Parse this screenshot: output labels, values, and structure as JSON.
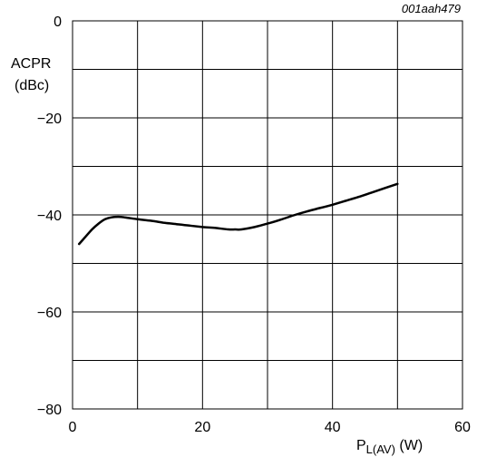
{
  "chart_data": {
    "type": "line",
    "figure_code": "001aah479",
    "ylabel_line1": "ACPR",
    "ylabel_line2": "(dBc)",
    "xlabel_main": "P",
    "xlabel_sub": "L(AV)",
    "xlabel_unit": " (W)",
    "xlim": [
      0,
      60
    ],
    "ylim": [
      -80,
      0
    ],
    "x_major_ticks": [
      0,
      20,
      40,
      60
    ],
    "x_tick_labels": [
      "0",
      "20",
      "40",
      "60"
    ],
    "y_major_ticks": [
      0,
      -20,
      -40,
      -60,
      -80
    ],
    "y_tick_labels": [
      "0",
      "−20",
      "−40",
      "−60",
      "−80"
    ],
    "grid": true,
    "grid_x_step": 10,
    "grid_y_step": 10,
    "series": [
      {
        "x": [
          1,
          2,
          3,
          4,
          5,
          6,
          7,
          8,
          10,
          12,
          14,
          16,
          18,
          20,
          22,
          24,
          25,
          26,
          28,
          30,
          32,
          34,
          36,
          38,
          40,
          42,
          44,
          46,
          48,
          50
        ],
        "y": [
          -46.0,
          -44.5,
          -43.0,
          -41.8,
          -40.9,
          -40.5,
          -40.4,
          -40.5,
          -40.9,
          -41.2,
          -41.6,
          -41.9,
          -42.2,
          -42.5,
          -42.7,
          -43.0,
          -43.0,
          -43.0,
          -42.5,
          -41.8,
          -41.0,
          -40.1,
          -39.3,
          -38.6,
          -37.9,
          -37.1,
          -36.3,
          -35.4,
          -34.5,
          -33.6
        ],
        "color": "#000000"
      }
    ]
  }
}
